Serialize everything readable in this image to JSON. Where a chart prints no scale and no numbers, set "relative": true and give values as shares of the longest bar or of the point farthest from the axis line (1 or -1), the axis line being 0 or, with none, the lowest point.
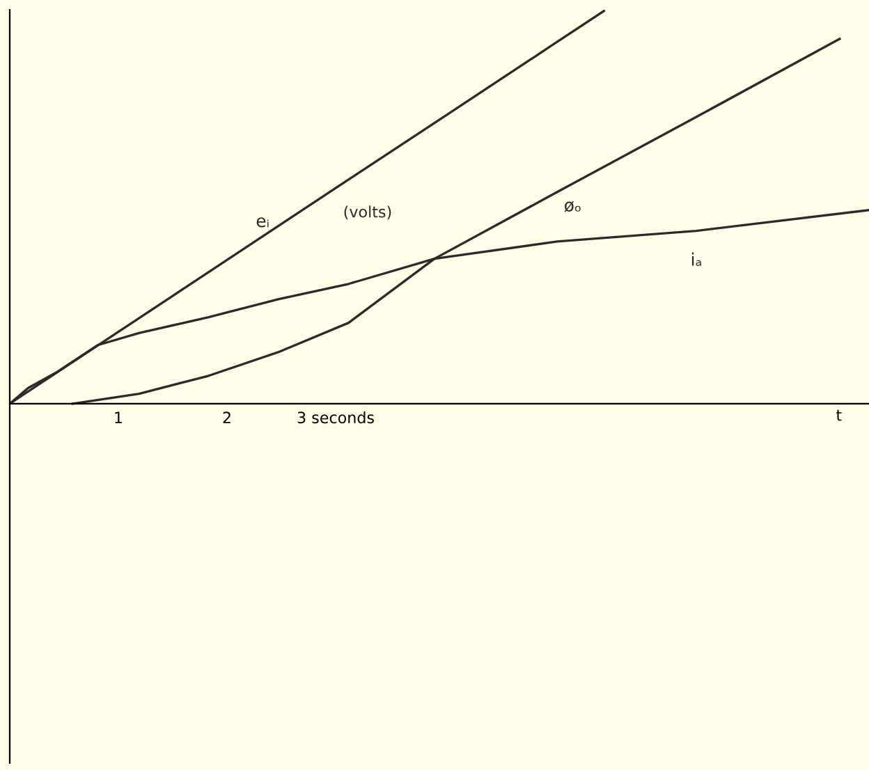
{
  "chart_data": {
    "type": "line",
    "relative": true,
    "xlim": [
      0,
      7.91
    ],
    "xticks": [
      1,
      2,
      {
        "value": 3,
        "label": "3 seconds"
      }
    ],
    "xlabel": "t",
    "annotations": [
      "(volts)"
    ],
    "grid": false,
    "legend": false,
    "marker": "none",
    "line_style": "solid",
    "series": [
      {
        "name": "eᵢ",
        "color": "#2a2a2a",
        "x": [
          0,
          1,
          2,
          3,
          4,
          5,
          5.47
        ],
        "values": [
          0,
          0.183,
          0.366,
          0.549,
          0.731,
          0.914,
          1.0
        ]
      },
      {
        "name": "øₒ",
        "color": "#2a2a2a",
        "x": [
          0.58,
          1.19,
          1.83,
          2.47,
          3.12,
          3.91,
          5.04,
          6.32,
          7.64
        ],
        "values": [
          0,
          0.025,
          0.071,
          0.131,
          0.206,
          0.369,
          0.539,
          0.73,
          0.929
        ]
      },
      {
        "name": "iₐ",
        "color": "#2a2a2a",
        "x": [
          0,
          0.17,
          0.42,
          0.81,
          1.19,
          1.83,
          2.47,
          3.12,
          3.91,
          5.04,
          6.32,
          7.91
        ],
        "values": [
          0,
          0.04,
          0.078,
          0.149,
          0.18,
          0.22,
          0.266,
          0.305,
          0.369,
          0.413,
          0.44,
          0.493
        ]
      }
    ]
  }
}
